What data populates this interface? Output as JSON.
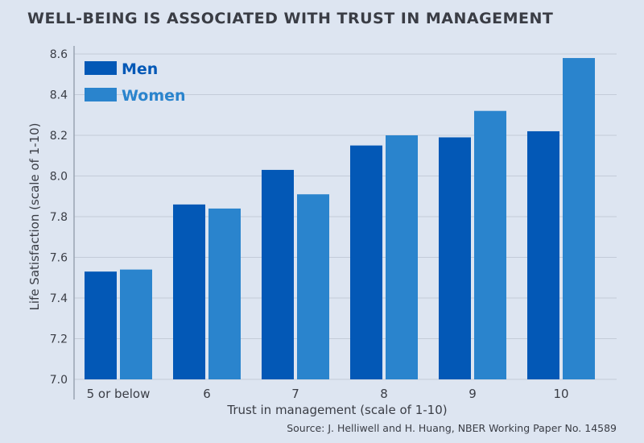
{
  "chart_data": {
    "type": "bar",
    "title": "WELL-BEING IS ASSOCIATED WITH TRUST IN MANAGEMENT",
    "xlabel": "Trust in management (scale of 1-10)",
    "ylabel": "Life Satisfaction (scale of 1-10)",
    "categories": [
      "5 or below",
      "6",
      "7",
      "8",
      "9",
      "10"
    ],
    "series": [
      {
        "name": "Men",
        "color": "#0358b6",
        "values": [
          7.53,
          7.86,
          8.03,
          8.15,
          8.19,
          8.22
        ]
      },
      {
        "name": "Women",
        "color": "#2a84cd",
        "values": [
          7.54,
          7.84,
          7.91,
          8.2,
          8.32,
          8.58
        ]
      }
    ],
    "ylim": [
      7.0,
      8.6
    ],
    "yticks": [
      "7.0",
      "7.2",
      "7.4",
      "7.6",
      "7.8",
      "8.0",
      "8.2",
      "8.4",
      "8.6"
    ],
    "grid": true,
    "legend": "top-left",
    "source": "Source: J. Helliwell and H. Huang,  NBER Working Paper No. 14589"
  }
}
